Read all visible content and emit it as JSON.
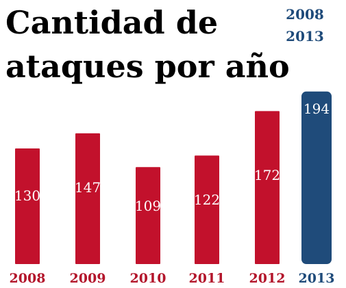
{
  "header": {
    "title_line1": "Cantidad de",
    "title_line2": "ataques por año",
    "range_start": "2008",
    "range_end": "2013"
  },
  "colors": {
    "bar": "#c2112c",
    "highlight": "#1f4b7a",
    "year_label": "#b3152b",
    "highlight_label": "#1f4b7a"
  },
  "chart_data": {
    "type": "bar",
    "title": "Cantidad de ataques por año",
    "categories": [
      "2008",
      "2009",
      "2010",
      "2011",
      "2012",
      "2013"
    ],
    "values": [
      130,
      147,
      109,
      122,
      172,
      194
    ],
    "data_labels": [
      "130",
      "147",
      "109",
      "122",
      "172",
      "194"
    ],
    "highlight_category": "2013",
    "xlabel": "",
    "ylabel": "",
    "ylim": [
      0,
      200
    ],
    "grid": false,
    "legend": "none"
  }
}
